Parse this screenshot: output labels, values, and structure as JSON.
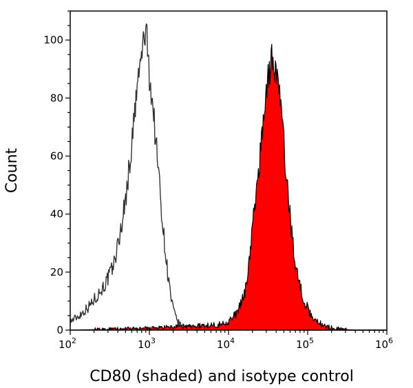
{
  "chart_data": {
    "type": "area",
    "title": "",
    "xlabel": "CD80 (shaded) and isotype control",
    "ylabel": "Count",
    "xscale": "log",
    "xlim": [
      100,
      1000000
    ],
    "ylim": [
      0,
      110
    ],
    "y_ticks": [
      0,
      20,
      40,
      60,
      80,
      100
    ],
    "x_ticks": [
      {
        "base": "10",
        "exp": "2"
      },
      {
        "base": "10",
        "exp": "3"
      },
      {
        "base": "10",
        "exp": "4"
      },
      {
        "base": "10",
        "exp": "5"
      },
      {
        "base": "10",
        "exp": "6"
      }
    ],
    "series": [
      {
        "name": "isotype control",
        "style": "outline",
        "color": "#333333",
        "x": [
          100,
          130,
          170,
          220,
          280,
          350,
          420,
          500,
          580,
          650,
          720,
          800,
          860,
          900,
          950,
          1000,
          1100,
          1200,
          1350,
          1500,
          1700,
          1900,
          2100,
          2400,
          2800,
          3500,
          5000,
          10000,
          30000,
          100000,
          300000,
          1000000
        ],
        "y": [
          3,
          5,
          8,
          12,
          16,
          22,
          32,
          45,
          60,
          74,
          86,
          95,
          101,
          103,
          97,
          88,
          78,
          66,
          50,
          34,
          20,
          10,
          5,
          2,
          1,
          0.5,
          0.3,
          0.2,
          0.1,
          0,
          0,
          0
        ]
      },
      {
        "name": "CD80",
        "style": "filled",
        "color": "#ff0000",
        "x": [
          100,
          1000,
          2000,
          5000,
          8000,
          10000,
          12000,
          14000,
          16000,
          18000,
          20000,
          23000,
          26000,
          29000,
          32000,
          35000,
          38000,
          42000,
          47000,
          52000,
          58000,
          65000,
          75000,
          90000,
          110000,
          140000,
          180000,
          250000,
          400000,
          1000000
        ],
        "y": [
          0,
          0.5,
          1,
          1.5,
          2,
          3,
          5,
          8,
          13,
          22,
          35,
          50,
          65,
          79,
          88,
          93,
          92,
          86,
          74,
          58,
          43,
          30,
          18,
          10,
          5,
          2.5,
          1,
          0.3,
          0,
          0
        ]
      }
    ]
  }
}
